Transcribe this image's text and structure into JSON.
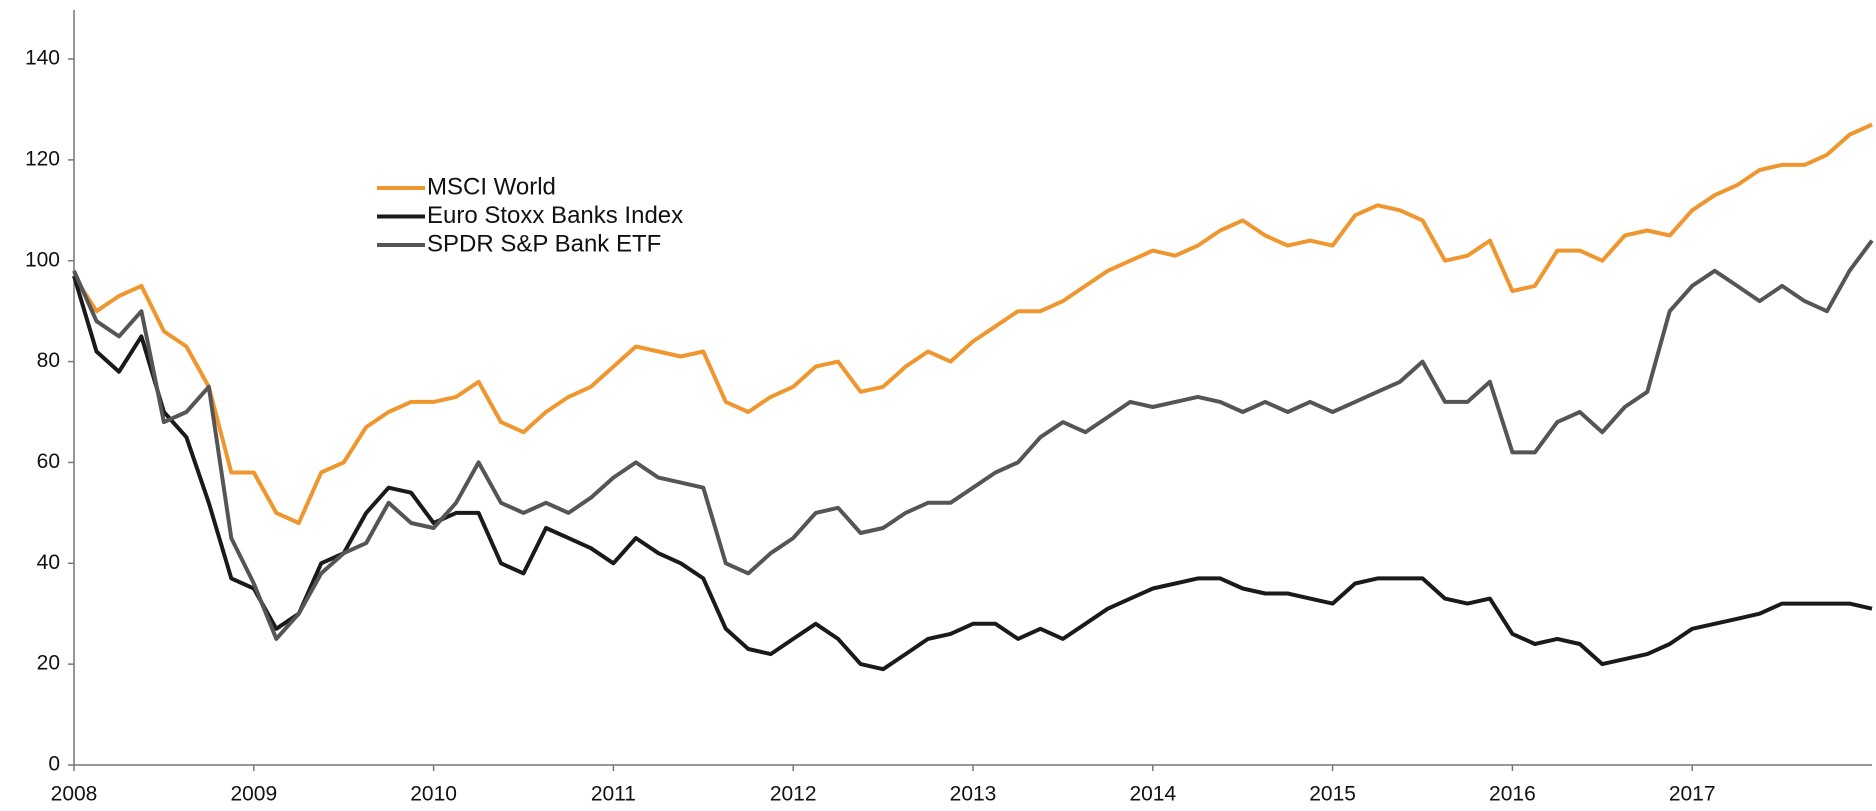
{
  "chart_data": {
    "type": "line",
    "x": [
      2008,
      2008.125,
      2008.25,
      2008.375,
      2008.5,
      2008.625,
      2008.75,
      2008.875,
      2009,
      2009.125,
      2009.25,
      2009.375,
      2009.5,
      2009.625,
      2009.75,
      2009.875,
      2010,
      2010.125,
      2010.25,
      2010.375,
      2010.5,
      2010.625,
      2010.75,
      2010.875,
      2011,
      2011.125,
      2011.25,
      2011.375,
      2011.5,
      2011.625,
      2011.75,
      2011.875,
      2012,
      2012.125,
      2012.25,
      2012.375,
      2012.5,
      2012.625,
      2012.75,
      2012.875,
      2013,
      2013.125,
      2013.25,
      2013.375,
      2013.5,
      2013.625,
      2013.75,
      2013.875,
      2014,
      2014.125,
      2014.25,
      2014.375,
      2014.5,
      2014.625,
      2014.75,
      2014.875,
      2015,
      2015.125,
      2015.25,
      2015.375,
      2015.5,
      2015.625,
      2015.75,
      2015.875,
      2016,
      2016.125,
      2016.25,
      2016.375,
      2016.5,
      2016.625,
      2016.75,
      2016.875,
      2017,
      2017.125,
      2017.25,
      2017.375,
      2017.5,
      2017.625,
      2017.75,
      2017.875,
      2018
    ],
    "series": [
      {
        "name": "MSCI World",
        "color": "#f0962e",
        "values": [
          97,
          90,
          93,
          95,
          86,
          83,
          75,
          58,
          58,
          50,
          48,
          58,
          60,
          67,
          70,
          72,
          72,
          73,
          76,
          68,
          66,
          70,
          73,
          75,
          79,
          83,
          82,
          81,
          82,
          72,
          70,
          73,
          75,
          79,
          80,
          74,
          75,
          79,
          82,
          80,
          84,
          87,
          90,
          90,
          92,
          95,
          98,
          100,
          102,
          101,
          103,
          106,
          108,
          105,
          103,
          104,
          103,
          109,
          111,
          110,
          108,
          100,
          101,
          104,
          94,
          95,
          102,
          102,
          100,
          105,
          106,
          105,
          110,
          113,
          115,
          118,
          119,
          119,
          121,
          125,
          127
        ]
      },
      {
        "name": "Euro Stoxx Banks Index",
        "color": "#1a1a1a",
        "values": [
          97,
          82,
          78,
          85,
          70,
          65,
          52,
          37,
          35,
          27,
          30,
          40,
          42,
          50,
          55,
          54,
          48,
          50,
          50,
          40,
          38,
          47,
          45,
          43,
          40,
          45,
          42,
          40,
          37,
          27,
          23,
          22,
          25,
          28,
          25,
          20,
          19,
          22,
          25,
          26,
          28,
          28,
          25,
          27,
          25,
          28,
          31,
          33,
          35,
          36,
          37,
          37,
          35,
          34,
          34,
          33,
          32,
          36,
          37,
          37,
          37,
          33,
          32,
          33,
          26,
          24,
          25,
          24,
          20,
          21,
          22,
          24,
          27,
          28,
          29,
          30,
          32,
          32,
          32,
          32,
          31
        ]
      },
      {
        "name": "SPDR S&P Bank ETF",
        "color": "#555555",
        "values": [
          98,
          88,
          85,
          90,
          68,
          70,
          75,
          45,
          36,
          25,
          30,
          38,
          42,
          44,
          52,
          48,
          47,
          52,
          60,
          52,
          50,
          52,
          50,
          53,
          57,
          60,
          57,
          56,
          55,
          40,
          38,
          42,
          45,
          50,
          51,
          46,
          47,
          50,
          52,
          52,
          55,
          58,
          60,
          65,
          68,
          66,
          69,
          72,
          71,
          72,
          73,
          72,
          70,
          72,
          70,
          72,
          70,
          72,
          74,
          76,
          80,
          72,
          72,
          76,
          62,
          62,
          68,
          70,
          66,
          71,
          74,
          90,
          95,
          98,
          95,
          92,
          95,
          92,
          90,
          98,
          104
        ]
      }
    ],
    "xlim": [
      2008,
      2018
    ],
    "xticks": [
      2008,
      2009,
      2010,
      2011,
      2012,
      2013,
      2014,
      2015,
      2016,
      2017
    ],
    "ylim": [
      0,
      150
    ],
    "yticks": [
      0,
      20,
      40,
      60,
      80,
      100,
      120,
      140
    ]
  }
}
